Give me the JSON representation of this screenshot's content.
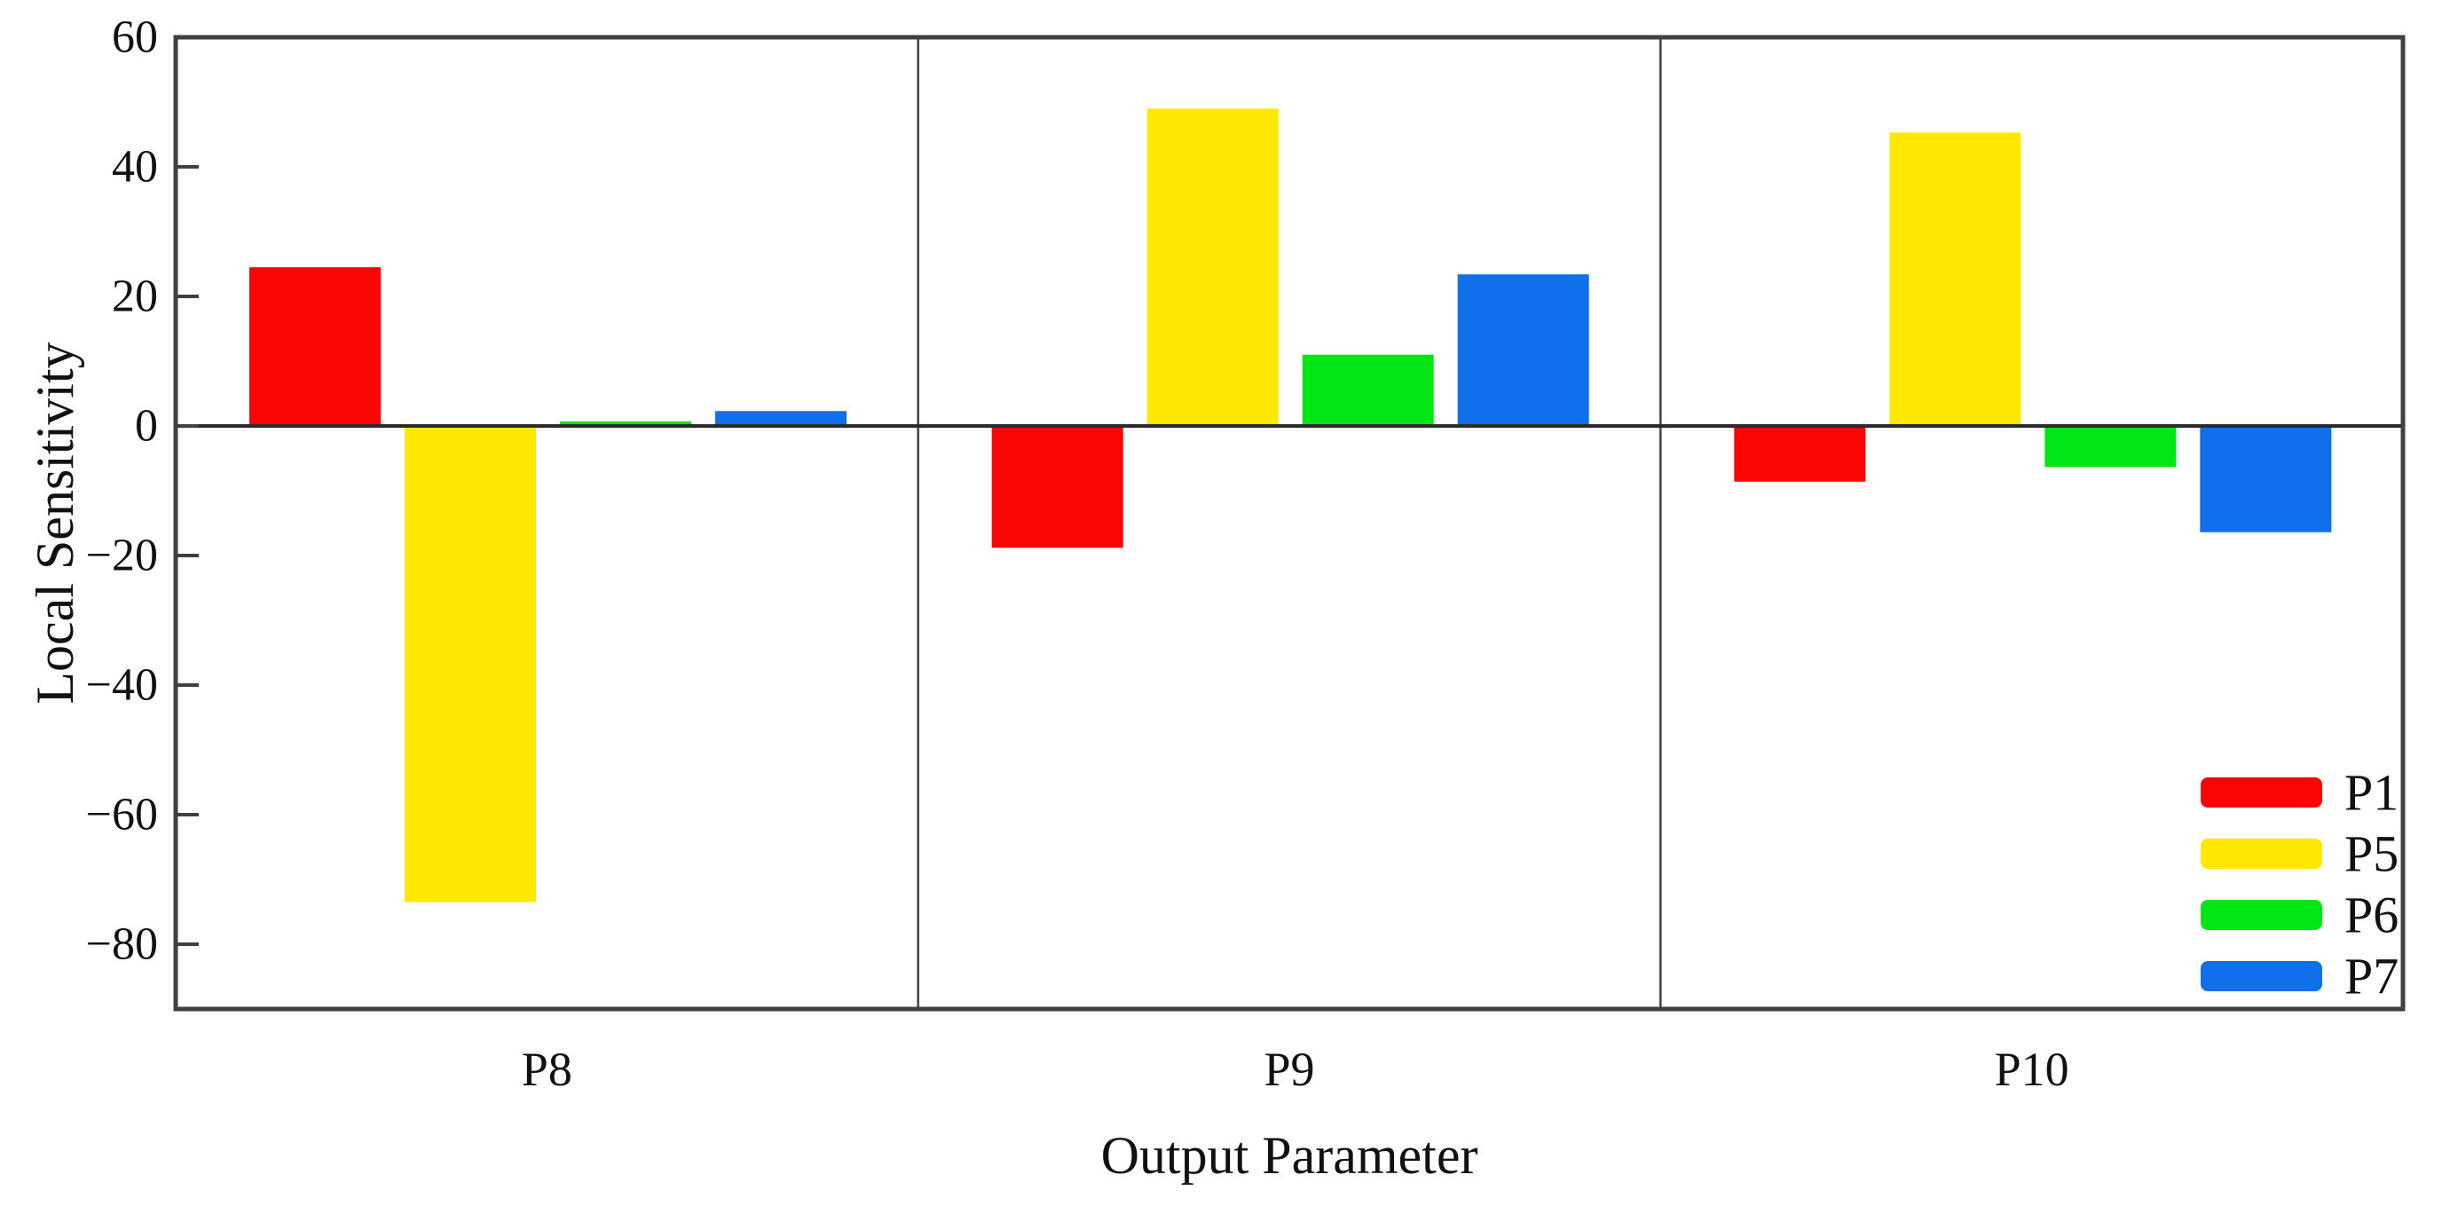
{
  "figure": {
    "background": "#ffffff",
    "text_color": "#111111",
    "axis_color": "#404040"
  },
  "chart_data": {
    "type": "bar",
    "title": "",
    "xlabel": "Output Parameter",
    "ylabel": "Local Sensitivity",
    "categories": [
      "P8",
      "P9",
      "P10"
    ],
    "series": [
      {
        "name": "P1",
        "color": "#FB0404",
        "values": [
          24.5,
          -18.8,
          -8.6
        ]
      },
      {
        "name": "P5",
        "color": "#FFE800",
        "values": [
          -73.5,
          49.0,
          45.3
        ]
      },
      {
        "name": "P6",
        "color": "#00E614",
        "values": [
          0.7,
          11.0,
          -6.3
        ]
      },
      {
        "name": "P7",
        "color": "#0F70EB",
        "values": [
          2.3,
          23.4,
          -16.4
        ]
      }
    ],
    "ylim": [
      -90,
      60
    ],
    "yticks": [
      60,
      40,
      20,
      0,
      -20,
      -40,
      -60,
      -80
    ],
    "grid": false,
    "panel_dividers": true,
    "zero_line": true,
    "legend_position": "bottom-right",
    "legend_labels": [
      "P1",
      "P5",
      "P6",
      "P7"
    ]
  }
}
